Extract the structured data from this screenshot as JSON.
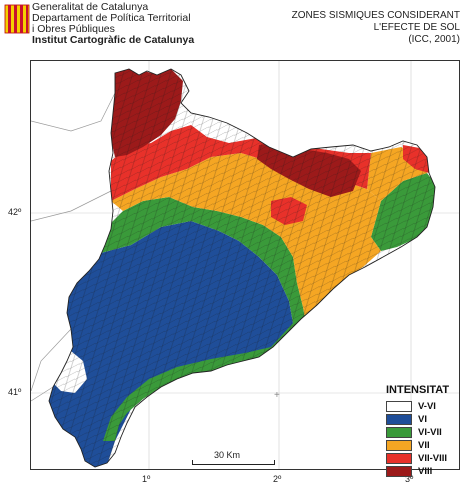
{
  "header": {
    "org_lines": [
      "Generalitat de Catalunya",
      "Departament de Política Territorial",
      "i Obres Públiques"
    ],
    "institute": "Institut Cartogràfic de Catalunya",
    "title_lines": [
      "ZONES SISMIQUES CONSIDERANT",
      "L'EFECTE DE SOL",
      "(ICC, 2001)"
    ]
  },
  "axes": {
    "longitude_ticks": [
      "1º",
      "2º",
      "3º"
    ],
    "latitude_ticks": [
      "42º",
      "41º"
    ]
  },
  "legend": {
    "title": "INTENSITAT",
    "items": [
      {
        "label": "V-VI",
        "color": "#ffffff"
      },
      {
        "label": "VI",
        "color": "#1f4e99"
      },
      {
        "label": "VI-VII",
        "color": "#3a9a3a"
      },
      {
        "label": "VII",
        "color": "#f5a623"
      },
      {
        "label": "VII-VIII",
        "color": "#e8312a"
      },
      {
        "label": "VIII",
        "color": "#9c1a1a"
      }
    ]
  },
  "scale": {
    "label": "30 Km"
  },
  "colors": {
    "white_zone": "#ffffff",
    "vi": "#1f4e99",
    "vi_vii": "#3a9a3a",
    "vii": "#f5a623",
    "vii_viii": "#e8312a",
    "viii": "#9c1a1a",
    "border": "#222222",
    "grid": "#aaaaaa"
  }
}
